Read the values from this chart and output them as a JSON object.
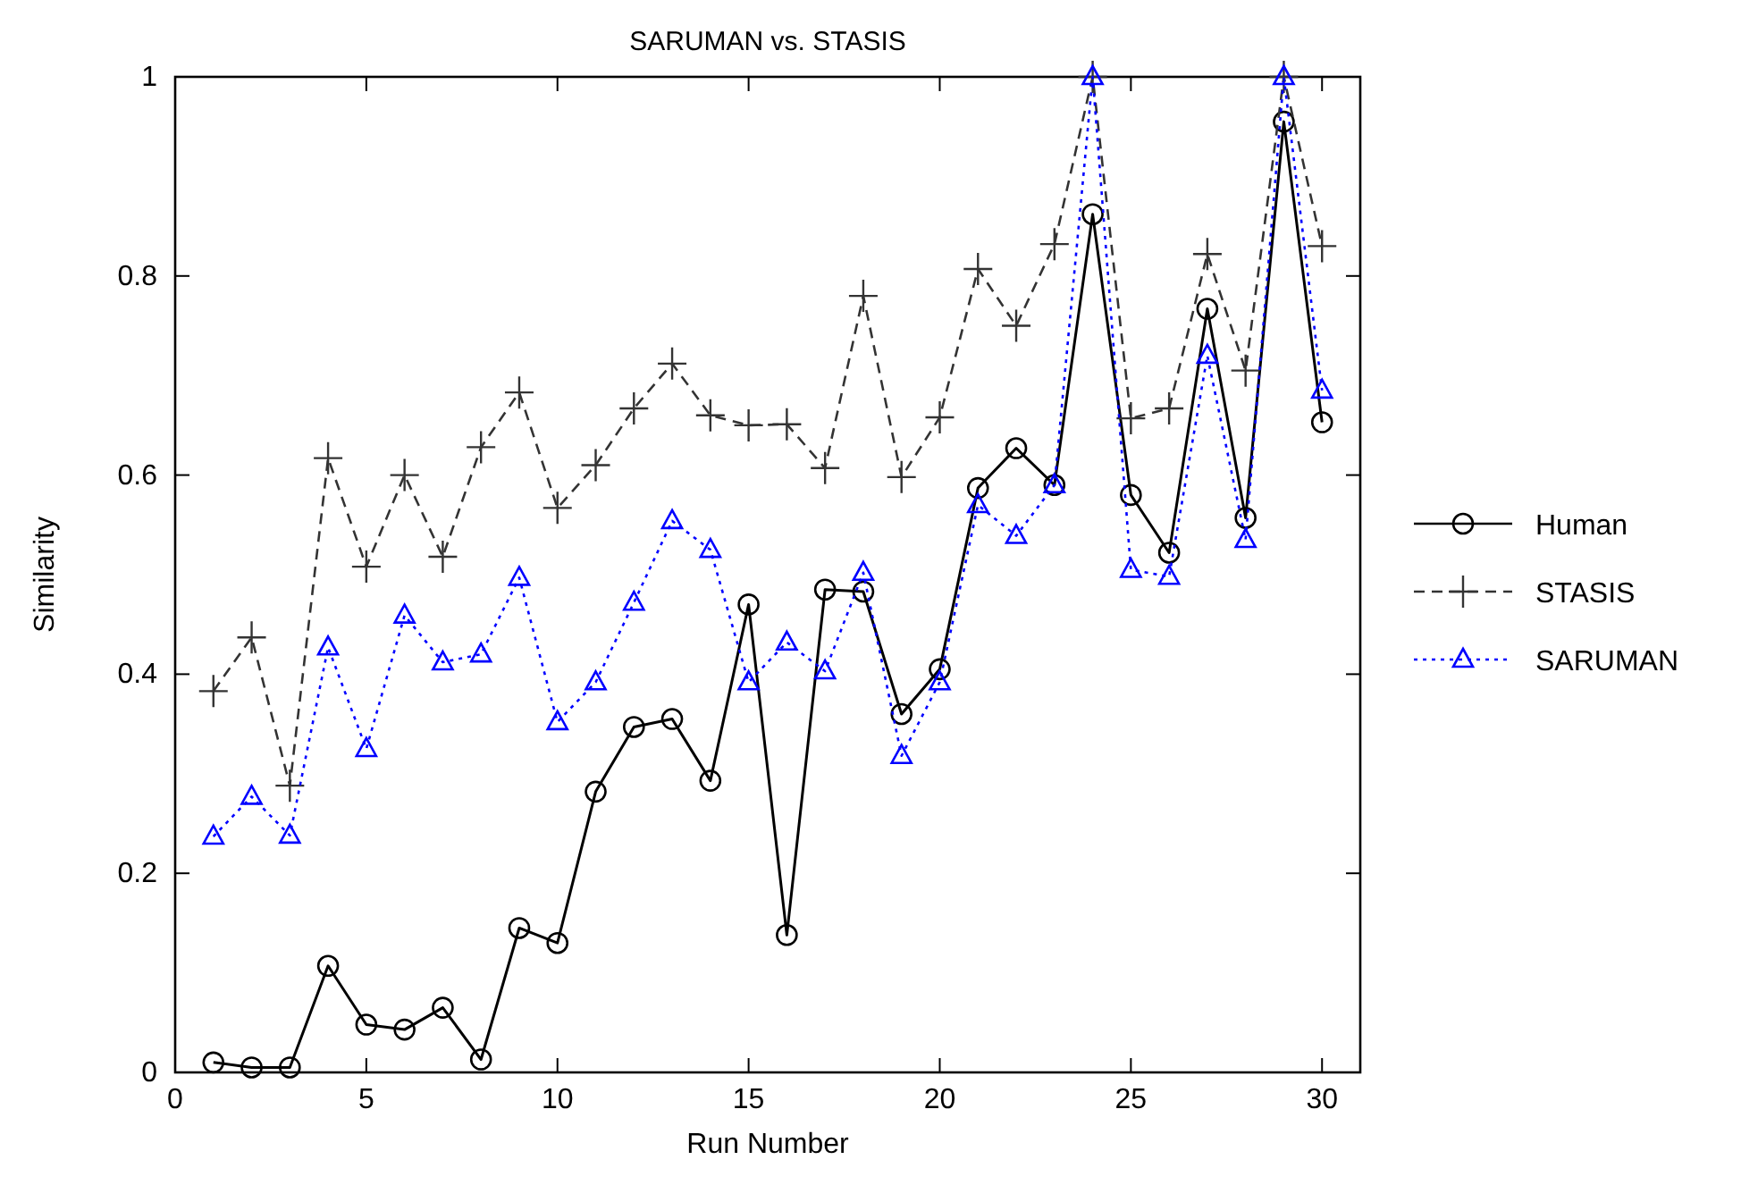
{
  "chart_data": {
    "type": "line",
    "title": "SARUMAN vs. STASIS",
    "xlabel": "Run Number",
    "ylabel": "Similarity",
    "x": [
      1,
      2,
      3,
      4,
      5,
      6,
      7,
      8,
      9,
      10,
      11,
      12,
      13,
      14,
      15,
      16,
      17,
      18,
      19,
      20,
      21,
      22,
      23,
      24,
      25,
      26,
      27,
      28,
      29,
      30
    ],
    "xlim": [
      0,
      31
    ],
    "xticks": [
      0,
      5,
      10,
      15,
      20,
      25,
      30
    ],
    "ylim": [
      0,
      1
    ],
    "yticks": [
      0,
      0.2,
      0.4,
      0.6,
      0.8,
      1
    ],
    "grid": false,
    "legend": "right",
    "series": [
      {
        "name": "Human",
        "color": "#000000",
        "marker": "circle",
        "line_style": "solid",
        "values": [
          0.01,
          0.005,
          0.005,
          0.107,
          0.048,
          0.043,
          0.065,
          0.013,
          0.145,
          0.13,
          0.282,
          0.347,
          0.355,
          0.293,
          0.47,
          0.138,
          0.485,
          0.483,
          0.36,
          0.405,
          0.587,
          0.627,
          0.59,
          0.862,
          0.58,
          0.522,
          0.767,
          0.557,
          0.955,
          0.653
        ]
      },
      {
        "name": "STASIS",
        "color": "#333333",
        "marker": "cross",
        "line_style": "dashed",
        "values": [
          0.383,
          0.437,
          0.288,
          0.617,
          0.508,
          0.6,
          0.518,
          0.628,
          0.683,
          0.567,
          0.61,
          0.667,
          0.712,
          0.66,
          0.65,
          0.651,
          0.607,
          0.78,
          0.598,
          0.658,
          0.807,
          0.75,
          0.832,
          1.0,
          0.657,
          0.667,
          0.822,
          0.705,
          1.0,
          0.83
        ]
      },
      {
        "name": "SARUMAN",
        "color": "#0000ff",
        "marker": "triangle",
        "line_style": "dotted",
        "values": [
          0.237,
          0.277,
          0.238,
          0.427,
          0.325,
          0.459,
          0.412,
          0.42,
          0.497,
          0.352,
          0.392,
          0.472,
          0.554,
          0.525,
          0.392,
          0.432,
          0.403,
          0.502,
          0.318,
          0.392,
          0.57,
          0.539,
          0.59,
          1.0,
          0.505,
          0.498,
          0.72,
          0.535,
          1.0,
          0.685
        ]
      }
    ]
  }
}
